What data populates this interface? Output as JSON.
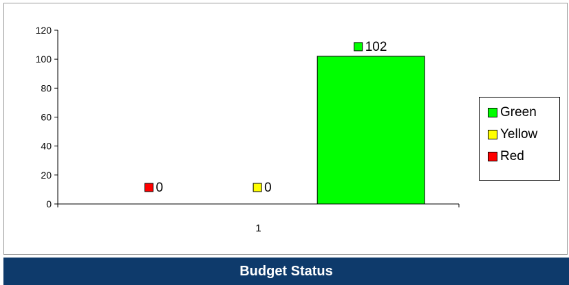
{
  "chart_data": {
    "type": "bar",
    "categories": [
      "1"
    ],
    "series": [
      {
        "name": "Red",
        "values": [
          0
        ],
        "color": "#ff0000"
      },
      {
        "name": "Yellow",
        "values": [
          0
        ],
        "color": "#ffff00"
      },
      {
        "name": "Green",
        "values": [
          102
        ],
        "color": "#00ff00"
      }
    ],
    "ylim": [
      0,
      120
    ],
    "yticks": [
      0,
      20,
      40,
      60,
      80,
      100,
      120
    ],
    "legend": {
      "placement": "right",
      "items": [
        {
          "name": "Green",
          "color": "#00ff00"
        },
        {
          "name": "Yellow",
          "color": "#ffff00"
        },
        {
          "name": "Red",
          "color": "#ff0000"
        }
      ]
    },
    "data_labels": [
      "0",
      "0",
      "102"
    ],
    "grid": false
  },
  "footer": {
    "title": "Budget Status"
  }
}
